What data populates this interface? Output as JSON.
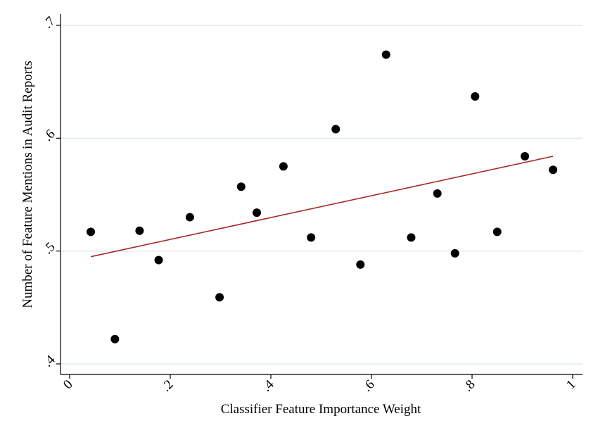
{
  "chart_data": {
    "type": "scatter",
    "xlabel": "Classifier Feature Importance Weight",
    "ylabel": "Number of Feature Mentions in Audit Reports",
    "xlim": [
      0,
      1
    ],
    "ylim": [
      0.4,
      0.7
    ],
    "x_ticks": [
      {
        "value": 0,
        "label": "0"
      },
      {
        "value": 0.2,
        "label": ".2"
      },
      {
        "value": 0.4,
        "label": ".4"
      },
      {
        "value": 0.6,
        "label": ".6"
      },
      {
        "value": 0.8,
        "label": ".8"
      },
      {
        "value": 1,
        "label": "1"
      }
    ],
    "y_ticks": [
      {
        "value": 0.4,
        "label": ".4"
      },
      {
        "value": 0.5,
        "label": ".5"
      },
      {
        "value": 0.6,
        "label": ".6"
      },
      {
        "value": 0.7,
        "label": ".7"
      }
    ],
    "grid": "horizontal",
    "legend": "none",
    "points": [
      {
        "x": 0.042,
        "y": 0.517
      },
      {
        "x": 0.09,
        "y": 0.422
      },
      {
        "x": 0.139,
        "y": 0.518
      },
      {
        "x": 0.177,
        "y": 0.492
      },
      {
        "x": 0.239,
        "y": 0.53
      },
      {
        "x": 0.298,
        "y": 0.459
      },
      {
        "x": 0.341,
        "y": 0.557
      },
      {
        "x": 0.372,
        "y": 0.534
      },
      {
        "x": 0.425,
        "y": 0.575
      },
      {
        "x": 0.48,
        "y": 0.512
      },
      {
        "x": 0.529,
        "y": 0.608
      },
      {
        "x": 0.578,
        "y": 0.488
      },
      {
        "x": 0.629,
        "y": 0.674
      },
      {
        "x": 0.679,
        "y": 0.512
      },
      {
        "x": 0.731,
        "y": 0.551
      },
      {
        "x": 0.766,
        "y": 0.498
      },
      {
        "x": 0.806,
        "y": 0.637
      },
      {
        "x": 0.85,
        "y": 0.517
      },
      {
        "x": 0.905,
        "y": 0.584
      },
      {
        "x": 0.961,
        "y": 0.572
      }
    ],
    "fit_line": {
      "x": [
        0.042,
        0.961
      ],
      "y": [
        0.495,
        0.584
      ]
    },
    "colors": {
      "points": "#000000",
      "fit_line": "#a52a2a",
      "grid": "#dde8e8",
      "axis": "#000000"
    }
  }
}
